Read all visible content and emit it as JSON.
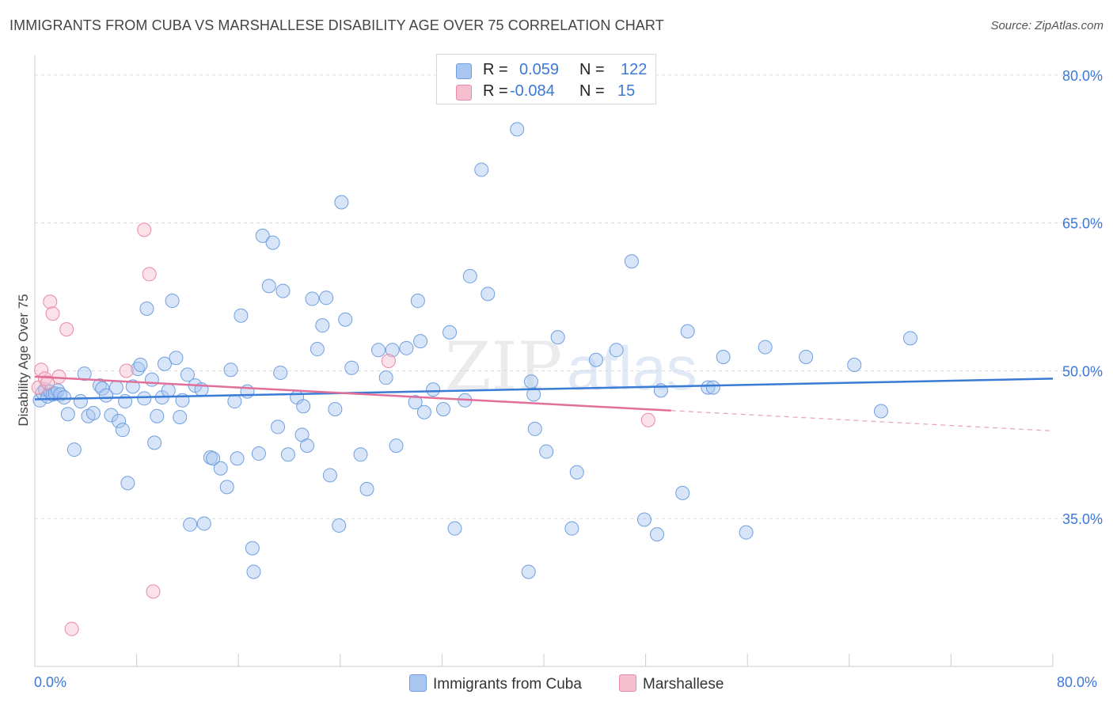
{
  "title": "IMMIGRANTS FROM CUBA VS MARSHALLESE DISABILITY AGE OVER 75 CORRELATION CHART",
  "source": "Source: ZipAtlas.com",
  "watermark": {
    "zip": "ZIP",
    "atlas": "atlas"
  },
  "legend_top": [
    {
      "r_label": "R =",
      "r_value": "0.059",
      "n_label": "N =",
      "n_value": "122",
      "color": "#a8c6f0",
      "border": "#6f9fe0"
    },
    {
      "r_label": "R =",
      "r_value": "-0.084",
      "n_label": "N =",
      "n_value": "15",
      "color": "#f6bfcf",
      "border": "#e98aa8"
    }
  ],
  "chart_data": {
    "type": "scatter",
    "title": "IMMIGRANTS FROM CUBA VS MARSHALLESE DISABILITY AGE OVER 75 CORRELATION CHART",
    "xlabel": "",
    "ylabel": "Disability Age Over 75",
    "xlim": [
      0,
      80
    ],
    "ylim": [
      20,
      82
    ],
    "x_tick_labels": [
      "0.0%",
      "80.0%"
    ],
    "y_ticks": [
      35,
      50,
      65,
      80
    ],
    "y_tick_labels": [
      "35.0%",
      "50.0%",
      "65.0%",
      "80.0%"
    ],
    "legend": [
      "Immigrants from Cuba",
      "Marshallese"
    ],
    "series": [
      {
        "name": "Immigrants from Cuba",
        "color": "#6f9fe0",
        "fill": "#a8c6f0",
        "trend": {
          "x": [
            0,
            80
          ],
          "y": [
            47.1,
            49.2
          ]
        },
        "points": [
          [
            0.4,
            47.0
          ],
          [
            0.6,
            47.8
          ],
          [
            0.8,
            48.1
          ],
          [
            1.0,
            47.4
          ],
          [
            1.2,
            47.9
          ],
          [
            1.4,
            47.6
          ],
          [
            1.6,
            47.7
          ],
          [
            1.8,
            48.0
          ],
          [
            2.0,
            47.6
          ],
          [
            2.3,
            47.3
          ],
          [
            2.6,
            45.6
          ],
          [
            3.1,
            42.0
          ],
          [
            3.6,
            46.9
          ],
          [
            3.9,
            49.7
          ],
          [
            4.2,
            45.4
          ],
          [
            4.6,
            45.7
          ],
          [
            5.1,
            48.5
          ],
          [
            5.3,
            48.2
          ],
          [
            5.6,
            47.5
          ],
          [
            6.0,
            45.5
          ],
          [
            6.4,
            48.3
          ],
          [
            6.6,
            44.9
          ],
          [
            6.9,
            44.0
          ],
          [
            7.1,
            46.9
          ],
          [
            7.3,
            38.6
          ],
          [
            7.7,
            48.4
          ],
          [
            8.1,
            50.2
          ],
          [
            8.3,
            50.6
          ],
          [
            8.6,
            47.2
          ],
          [
            8.8,
            56.3
          ],
          [
            9.2,
            49.1
          ],
          [
            9.4,
            42.7
          ],
          [
            9.6,
            45.4
          ],
          [
            10.0,
            47.3
          ],
          [
            10.2,
            50.7
          ],
          [
            10.5,
            48.0
          ],
          [
            10.8,
            57.1
          ],
          [
            11.1,
            51.3
          ],
          [
            11.4,
            45.3
          ],
          [
            11.6,
            47.0
          ],
          [
            12.0,
            49.6
          ],
          [
            12.2,
            34.4
          ],
          [
            12.6,
            48.5
          ],
          [
            13.1,
            48.1
          ],
          [
            13.3,
            34.5
          ],
          [
            13.8,
            41.2
          ],
          [
            14.0,
            41.1
          ],
          [
            14.6,
            40.1
          ],
          [
            15.1,
            38.2
          ],
          [
            15.4,
            50.1
          ],
          [
            15.7,
            46.9
          ],
          [
            15.9,
            41.1
          ],
          [
            16.2,
            55.6
          ],
          [
            16.7,
            47.9
          ],
          [
            17.1,
            32.0
          ],
          [
            17.2,
            29.6
          ],
          [
            17.6,
            41.6
          ],
          [
            17.9,
            63.7
          ],
          [
            18.4,
            58.6
          ],
          [
            18.7,
            63.0
          ],
          [
            19.1,
            44.3
          ],
          [
            19.3,
            49.8
          ],
          [
            19.5,
            58.1
          ],
          [
            19.9,
            41.5
          ],
          [
            20.6,
            47.3
          ],
          [
            21.0,
            43.5
          ],
          [
            21.1,
            46.4
          ],
          [
            21.4,
            42.4
          ],
          [
            21.8,
            57.3
          ],
          [
            22.2,
            52.2
          ],
          [
            22.6,
            54.6
          ],
          [
            22.9,
            57.4
          ],
          [
            23.2,
            39.4
          ],
          [
            23.6,
            46.1
          ],
          [
            23.9,
            34.3
          ],
          [
            24.1,
            67.1
          ],
          [
            24.4,
            55.2
          ],
          [
            24.9,
            50.3
          ],
          [
            25.6,
            41.5
          ],
          [
            26.1,
            38.0
          ],
          [
            27.0,
            52.1
          ],
          [
            27.6,
            49.3
          ],
          [
            28.1,
            52.1
          ],
          [
            28.4,
            42.4
          ],
          [
            29.2,
            52.3
          ],
          [
            29.9,
            46.8
          ],
          [
            30.1,
            57.1
          ],
          [
            30.3,
            53.0
          ],
          [
            30.6,
            45.8
          ],
          [
            31.3,
            48.1
          ],
          [
            32.1,
            46.1
          ],
          [
            32.6,
            53.9
          ],
          [
            33.0,
            34.0
          ],
          [
            33.8,
            47.0
          ],
          [
            34.2,
            59.6
          ],
          [
            35.1,
            70.4
          ],
          [
            35.6,
            57.8
          ],
          [
            37.9,
            74.5
          ],
          [
            38.8,
            29.6
          ],
          [
            39.2,
            47.6
          ],
          [
            39.3,
            44.1
          ],
          [
            39.0,
            48.9
          ],
          [
            40.2,
            41.8
          ],
          [
            41.1,
            53.4
          ],
          [
            42.2,
            34.0
          ],
          [
            42.6,
            39.7
          ],
          [
            44.1,
            51.1
          ],
          [
            45.7,
            52.1
          ],
          [
            46.9,
            61.1
          ],
          [
            47.9,
            34.9
          ],
          [
            48.9,
            33.4
          ],
          [
            49.2,
            48.0
          ],
          [
            50.9,
            37.6
          ],
          [
            51.3,
            54.0
          ],
          [
            52.9,
            48.3
          ],
          [
            53.3,
            48.3
          ],
          [
            54.1,
            51.4
          ],
          [
            55.9,
            33.6
          ],
          [
            57.4,
            52.4
          ],
          [
            60.6,
            51.4
          ],
          [
            64.4,
            50.6
          ],
          [
            66.5,
            45.9
          ],
          [
            68.8,
            53.3
          ]
        ]
      },
      {
        "name": "Marshallese",
        "color": "#e98aa8",
        "fill": "#f6bfcf",
        "trend": {
          "x": [
            0,
            80
          ],
          "y": [
            49.4,
            43.9
          ]
        },
        "trend_solid_to_x": 50,
        "points": [
          [
            0.3,
            48.3
          ],
          [
            0.5,
            50.1
          ],
          [
            0.8,
            49.2
          ],
          [
            1.0,
            48.8
          ],
          [
            1.2,
            57.0
          ],
          [
            1.4,
            55.8
          ],
          [
            1.9,
            49.4
          ],
          [
            2.5,
            54.2
          ],
          [
            2.9,
            23.8
          ],
          [
            7.2,
            50.0
          ],
          [
            8.6,
            64.3
          ],
          [
            9.0,
            59.8
          ],
          [
            9.3,
            27.6
          ],
          [
            27.8,
            51.0
          ],
          [
            48.2,
            45.0
          ]
        ]
      }
    ]
  },
  "bottom_legend": [
    {
      "label": "Immigrants from Cuba",
      "color": "#a8c6f0",
      "border": "#6f9fe0"
    },
    {
      "label": "Marshallese",
      "color": "#f6bfcf",
      "border": "#e98aa8"
    }
  ]
}
